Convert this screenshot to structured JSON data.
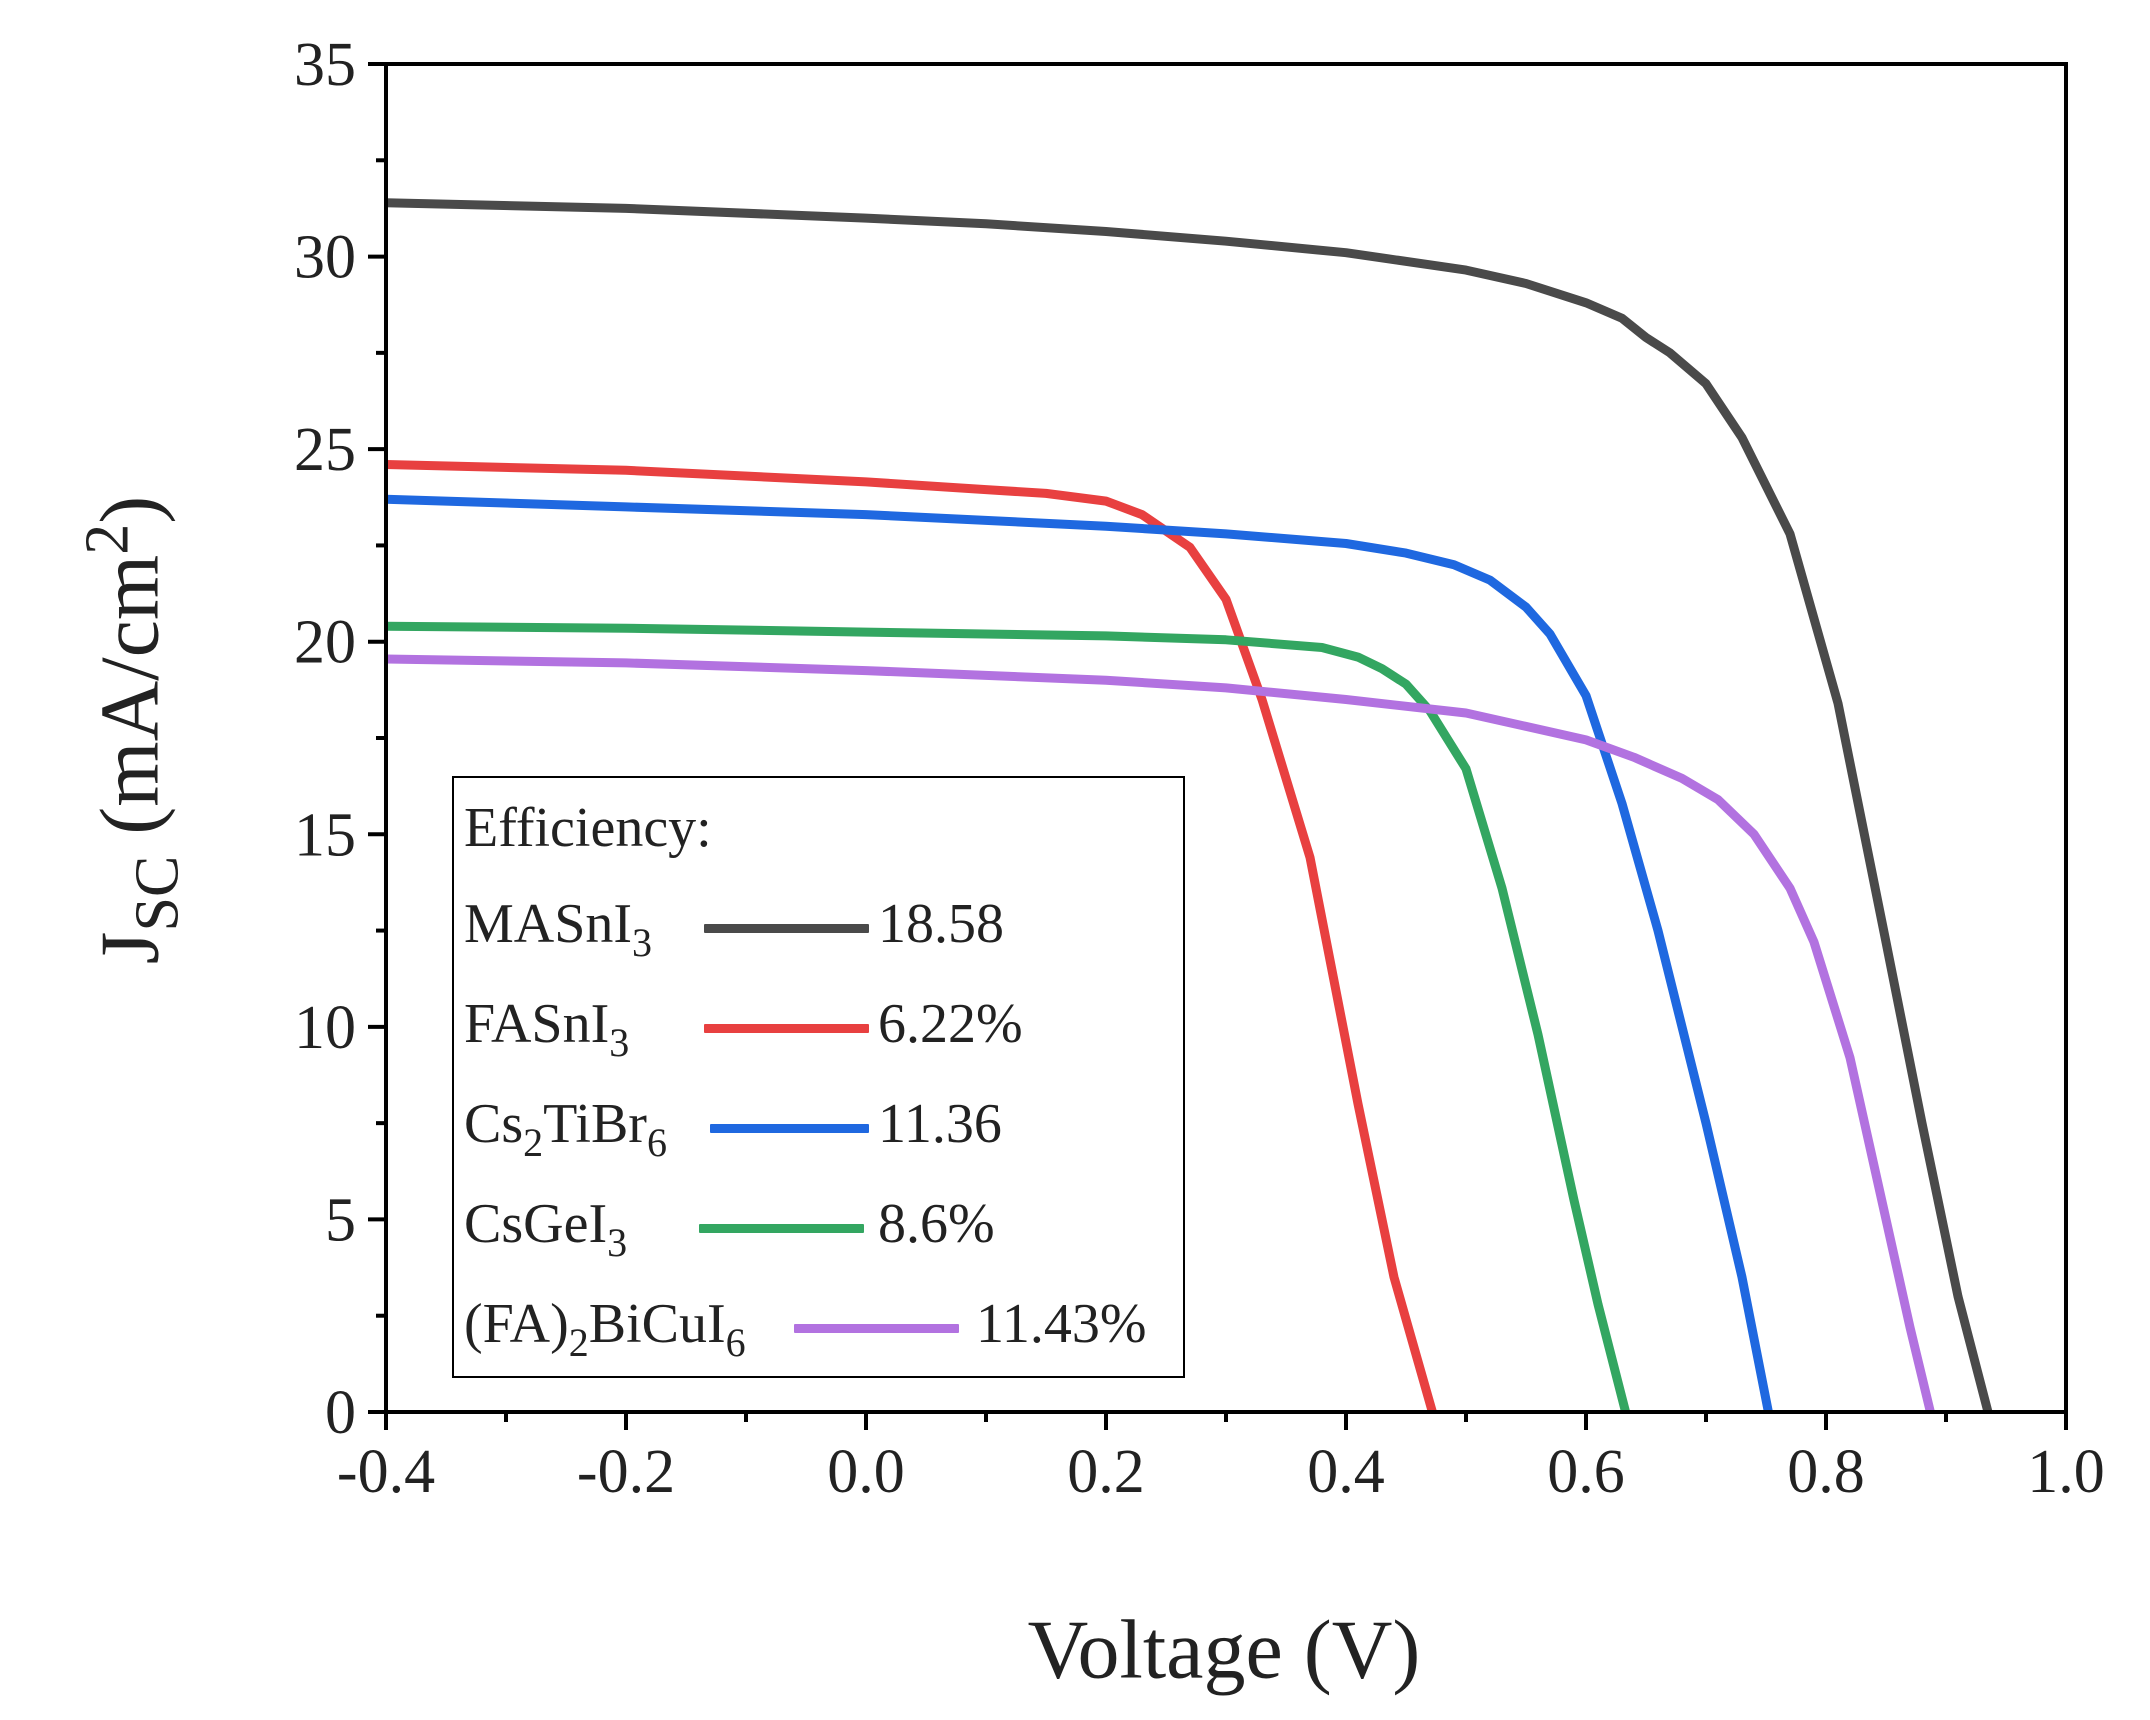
{
  "chart_data": {
    "type": "line",
    "xlabel": "Voltage (V)",
    "ylabel_parts": {
      "main": "J",
      "sub": "SC",
      "unit": " (mA/cm",
      "sup": "2",
      "close": ")"
    },
    "xlim": [
      -0.4,
      1.0
    ],
    "ylim": [
      0,
      35
    ],
    "x_ticks": [
      -0.4,
      -0.2,
      0.0,
      0.2,
      0.4,
      0.6,
      0.8,
      1.0
    ],
    "x_tick_labels": [
      "-0.4",
      "-0.2",
      "0.0",
      "0.2",
      "0.4",
      "0.6",
      "0.8",
      "1.0"
    ],
    "y_ticks": [
      0,
      5,
      10,
      15,
      20,
      25,
      30,
      35
    ],
    "y_tick_labels": [
      "0",
      "5",
      "10",
      "15",
      "20",
      "25",
      "30",
      "35"
    ],
    "grid": false,
    "legend": {
      "title": "Efficiency:",
      "position": "bottom-left",
      "entries": [
        {
          "name": "MASnI",
          "sub": "3",
          "value": "18.58"
        },
        {
          "name": "FASnI",
          "sub": "3",
          "value": "6.22%"
        },
        {
          "name": "Cs",
          "sub": "2",
          "name2": "TiBr",
          "sub2": "6",
          "value": "11.36"
        },
        {
          "name": "CsGeI",
          "sub": "3",
          "value": "8.6%"
        },
        {
          "name": "(FA)",
          "sub": "2",
          "name2": "BiCuI",
          "sub2": "6",
          "value": "11.43%"
        }
      ]
    },
    "series": [
      {
        "name": "MASnI3",
        "color": "#4a4a4a",
        "x": [
          -0.4,
          -0.2,
          0.0,
          0.1,
          0.2,
          0.3,
          0.4,
          0.5,
          0.55,
          0.6,
          0.63,
          0.65,
          0.67,
          0.7,
          0.73,
          0.77,
          0.81,
          0.85,
          0.88,
          0.91,
          0.935
        ],
        "y": [
          31.4,
          31.25,
          31.0,
          30.85,
          30.65,
          30.4,
          30.1,
          29.65,
          29.3,
          28.8,
          28.4,
          27.9,
          27.5,
          26.7,
          25.3,
          22.8,
          18.4,
          12.2,
          7.5,
          3.0,
          0
        ]
      },
      {
        "name": "FASnI3",
        "color": "#e84040",
        "x": [
          -0.4,
          -0.2,
          0.0,
          0.1,
          0.15,
          0.2,
          0.23,
          0.27,
          0.3,
          0.33,
          0.37,
          0.41,
          0.44,
          0.472
        ],
        "y": [
          24.6,
          24.45,
          24.15,
          23.95,
          23.85,
          23.65,
          23.3,
          22.45,
          21.1,
          18.5,
          14.4,
          8.0,
          3.5,
          0
        ]
      },
      {
        "name": "Cs2TiBr6",
        "color": "#1f68e0",
        "x": [
          -0.4,
          -0.2,
          0.0,
          0.2,
          0.3,
          0.4,
          0.45,
          0.49,
          0.52,
          0.55,
          0.57,
          0.6,
          0.63,
          0.66,
          0.7,
          0.73,
          0.752
        ],
        "y": [
          23.7,
          23.5,
          23.3,
          23.0,
          22.8,
          22.55,
          22.3,
          22.0,
          21.6,
          20.9,
          20.2,
          18.6,
          15.8,
          12.5,
          7.5,
          3.5,
          0
        ]
      },
      {
        "name": "CsGeI3",
        "color": "#33a661",
        "x": [
          -0.4,
          -0.2,
          0.0,
          0.2,
          0.3,
          0.38,
          0.41,
          0.43,
          0.45,
          0.47,
          0.5,
          0.53,
          0.56,
          0.59,
          0.61,
          0.633
        ],
        "y": [
          20.4,
          20.35,
          20.25,
          20.15,
          20.05,
          19.85,
          19.6,
          19.3,
          18.9,
          18.2,
          16.7,
          13.6,
          9.8,
          5.5,
          2.8,
          0
        ]
      },
      {
        "name": "(FA)2BiCuI6",
        "color": "#b272e0",
        "x": [
          -0.4,
          -0.2,
          0.0,
          0.2,
          0.3,
          0.4,
          0.5,
          0.55,
          0.6,
          0.64,
          0.68,
          0.71,
          0.74,
          0.77,
          0.79,
          0.82,
          0.85,
          0.87,
          0.887
        ],
        "y": [
          19.55,
          19.45,
          19.25,
          19.0,
          18.8,
          18.5,
          18.15,
          17.8,
          17.45,
          17.0,
          16.45,
          15.9,
          15.0,
          13.6,
          12.2,
          9.2,
          5.0,
          2.2,
          0
        ]
      }
    ]
  }
}
